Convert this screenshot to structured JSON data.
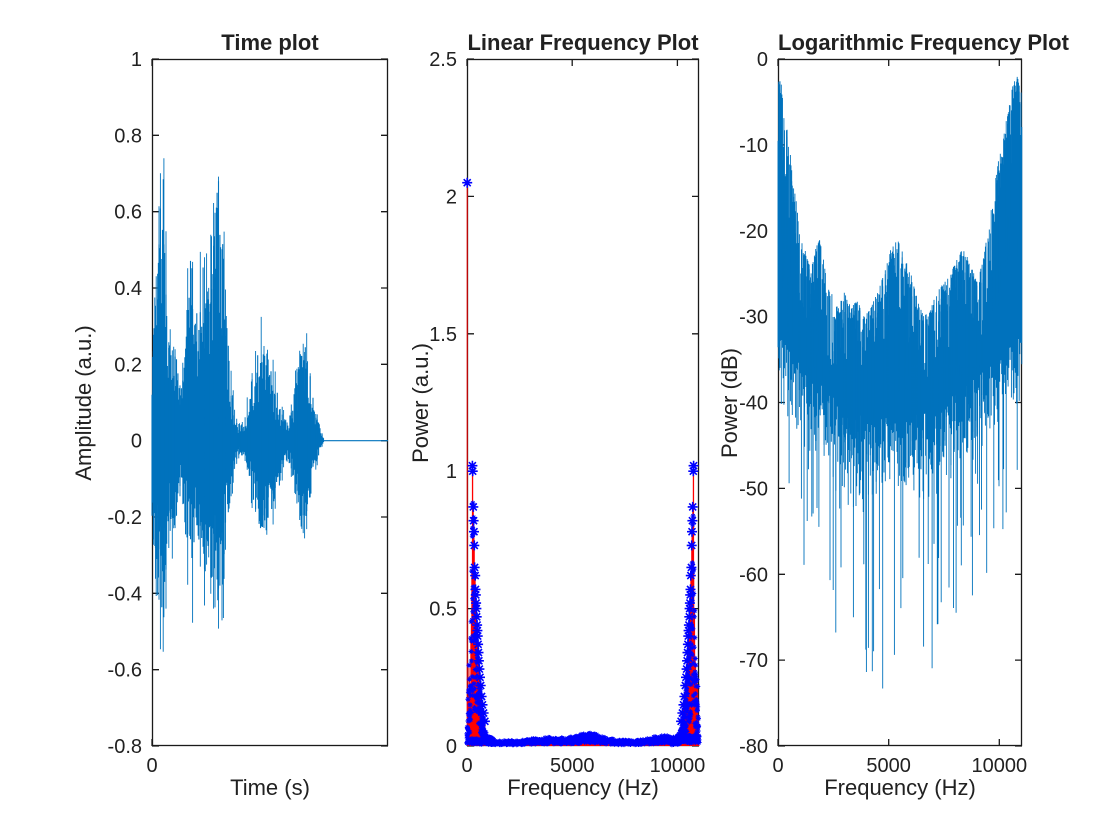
{
  "figure": {
    "background": "#ffffff",
    "waveform_blue": "#0072BD",
    "stem_red": "#ff0000",
    "marker_blue": "#0000ff",
    "axis_color": "#1a1a1a",
    "text_color": "#212121"
  },
  "chart_data": [
    {
      "id": "time-plot",
      "type": "line",
      "title": "Time plot",
      "xlabel": "Time (s)",
      "ylabel": "Amplitude (a.u.)",
      "ylim": [
        -0.8,
        1
      ],
      "yticks": [
        1,
        0.8,
        0.6,
        0.4,
        0.2,
        0,
        -0.2,
        -0.4,
        -0.6,
        -0.8
      ],
      "ytick_labels": [
        "1",
        "0.8",
        "0.6",
        "0.4",
        "0.2",
        "0",
        "-0.2",
        "-0.4",
        "-0.6",
        "-0.8"
      ],
      "xlim": [
        0,
        1
      ],
      "xticks": [
        0
      ],
      "xtick_labels": [
        "0"
      ],
      "grid": false,
      "series_color": "#0072BD",
      "description": "speech waveform with five bursts then silence; x positions given as fraction of visible span (only tick 0 labeled)",
      "envelope_frac_max_min": [
        [
          0.0,
          0.3,
          -0.28
        ],
        [
          0.012,
          0.45,
          -0.38
        ],
        [
          0.028,
          0.62,
          -0.5
        ],
        [
          0.042,
          0.93,
          -0.6
        ],
        [
          0.05,
          0.8,
          -0.62
        ],
        [
          0.06,
          0.55,
          -0.45
        ],
        [
          0.072,
          0.32,
          -0.3
        ],
        [
          0.085,
          0.28,
          -0.34
        ],
        [
          0.1,
          0.3,
          -0.28
        ],
        [
          0.115,
          0.18,
          -0.16
        ],
        [
          0.13,
          0.24,
          -0.22
        ],
        [
          0.145,
          0.42,
          -0.34
        ],
        [
          0.16,
          0.63,
          -0.46
        ],
        [
          0.172,
          0.57,
          -0.48
        ],
        [
          0.185,
          0.46,
          -0.4
        ],
        [
          0.2,
          0.4,
          -0.36
        ],
        [
          0.213,
          0.76,
          -0.5
        ],
        [
          0.225,
          0.54,
          -0.44
        ],
        [
          0.24,
          0.46,
          -0.4
        ],
        [
          0.258,
          0.72,
          -0.52
        ],
        [
          0.275,
          0.92,
          -0.65
        ],
        [
          0.29,
          0.78,
          -0.58
        ],
        [
          0.305,
          0.58,
          -0.46
        ],
        [
          0.32,
          0.36,
          -0.3
        ],
        [
          0.335,
          0.2,
          -0.18
        ],
        [
          0.35,
          0.09,
          -0.08
        ],
        [
          0.365,
          0.05,
          -0.05
        ],
        [
          0.385,
          0.05,
          -0.04
        ],
        [
          0.405,
          0.12,
          -0.1
        ],
        [
          0.425,
          0.22,
          -0.2
        ],
        [
          0.445,
          0.3,
          -0.26
        ],
        [
          0.462,
          0.35,
          -0.3
        ],
        [
          0.48,
          0.28,
          -0.27
        ],
        [
          0.5,
          0.24,
          -0.24
        ],
        [
          0.52,
          0.2,
          -0.22
        ],
        [
          0.54,
          0.13,
          -0.15
        ],
        [
          0.558,
          0.08,
          -0.09
        ],
        [
          0.575,
          0.06,
          -0.06
        ],
        [
          0.592,
          0.12,
          -0.1
        ],
        [
          0.612,
          0.2,
          -0.17
        ],
        [
          0.632,
          0.27,
          -0.23
        ],
        [
          0.648,
          0.32,
          -0.28
        ],
        [
          0.662,
          0.26,
          -0.24
        ],
        [
          0.678,
          0.17,
          -0.15
        ],
        [
          0.695,
          0.09,
          -0.08
        ],
        [
          0.715,
          0.04,
          -0.03
        ],
        [
          0.73,
          0.0,
          0.0
        ],
        [
          1.0,
          0.0,
          0.0
        ]
      ],
      "flat_after_frac": 0.73
    },
    {
      "id": "linear-frequency-plot",
      "type": "stem",
      "title": "Linear Frequency Plot",
      "xlabel": "Frequency (Hz)",
      "ylabel": "Power (a.u.)",
      "xlim": [
        0,
        11025
      ],
      "ylim": [
        0,
        2.5
      ],
      "yticks": [
        0,
        0.5,
        1,
        1.5,
        2,
        2.5
      ],
      "ytick_labels": [
        "0",
        "0.5",
        "1",
        "1.5",
        "2",
        "2.5"
      ],
      "xticks": [
        0,
        5000,
        10000
      ],
      "xtick_labels": [
        "0",
        "5000",
        "10000"
      ],
      "stem_color": "#ff0000",
      "marker": "*",
      "marker_color": "#0000ff",
      "dc_peak_hz_power": [
        10,
        2.05
      ],
      "mirror_nyquist_hz": 11025,
      "harmonic_markers_hz_power": [
        [
          258,
          1.02
        ],
        [
          272,
          1.0
        ],
        [
          301,
          0.87
        ],
        [
          316,
          0.82
        ],
        [
          331,
          0.78
        ],
        [
          346,
          0.73
        ],
        [
          362,
          0.65
        ],
        [
          388,
          0.62
        ],
        [
          403,
          0.57
        ],
        [
          418,
          0.55
        ],
        [
          432,
          0.52
        ],
        [
          447,
          0.5
        ],
        [
          462,
          0.47
        ],
        [
          478,
          0.44
        ],
        [
          494,
          0.42
        ],
        [
          510,
          0.4
        ],
        [
          527,
          0.37
        ],
        [
          546,
          0.34
        ],
        [
          566,
          0.31
        ],
        [
          590,
          0.28
        ],
        [
          618,
          0.25
        ],
        [
          652,
          0.22
        ],
        [
          692,
          0.18
        ],
        [
          738,
          0.15
        ],
        [
          790,
          0.12
        ],
        [
          850,
          0.09
        ]
      ],
      "cluster_envelope_hz_power": [
        [
          0,
          0.05
        ],
        [
          40,
          0.14
        ],
        [
          86,
          0.32
        ],
        [
          125,
          0.22
        ],
        [
          165,
          0.34
        ],
        [
          205,
          0.5
        ],
        [
          235,
          0.72
        ],
        [
          258,
          1.02
        ],
        [
          278,
          0.94
        ],
        [
          300,
          0.87
        ],
        [
          330,
          0.78
        ],
        [
          360,
          0.66
        ],
        [
          395,
          0.6
        ],
        [
          425,
          0.53
        ],
        [
          455,
          0.48
        ],
        [
          490,
          0.43
        ],
        [
          525,
          0.37
        ],
        [
          565,
          0.3
        ],
        [
          620,
          0.23
        ],
        [
          690,
          0.15
        ],
        [
          780,
          0.09
        ],
        [
          900,
          0.05
        ],
        [
          1050,
          0.035
        ],
        [
          1300,
          0.025
        ]
      ],
      "noise_floor_hz_power": [
        [
          0,
          0.03
        ],
        [
          1200,
          0.02
        ],
        [
          2400,
          0.018
        ],
        [
          3300,
          0.028
        ],
        [
          4000,
          0.032
        ],
        [
          4700,
          0.028
        ],
        [
          5300,
          0.04
        ],
        [
          5900,
          0.05
        ],
        [
          6400,
          0.035
        ],
        [
          7100,
          0.022
        ],
        [
          7900,
          0.02
        ],
        [
          8700,
          0.03
        ],
        [
          9400,
          0.04
        ],
        [
          9900,
          0.032
        ],
        [
          10200,
          0.04
        ]
      ]
    },
    {
      "id": "logarithmic-frequency-plot",
      "type": "line",
      "title": "Logarithmic Frequency Plot",
      "xlabel": "Frequency (Hz)",
      "ylabel": "Power (dB)",
      "xlim": [
        0,
        11025
      ],
      "ylim": [
        -80,
        0
      ],
      "yticks": [
        0,
        -10,
        -20,
        -30,
        -40,
        -50,
        -60,
        -70,
        -80
      ],
      "ytick_labels": [
        "0",
        "-10",
        "-20",
        "-30",
        "-40",
        "-50",
        "-60",
        "-70",
        "-80"
      ],
      "xticks": [
        0,
        5000,
        10000
      ],
      "xtick_labels": [
        "0",
        "5000",
        "10000"
      ],
      "series_color": "#0072BD",
      "top_envelope_hz_db": [
        [
          0,
          -2
        ],
        [
          150,
          -3
        ],
        [
          300,
          -6
        ],
        [
          500,
          -10
        ],
        [
          700,
          -14
        ],
        [
          900,
          -18
        ],
        [
          1100,
          -21
        ],
        [
          1400,
          -24
        ],
        [
          1700,
          -22
        ],
        [
          1900,
          -21
        ],
        [
          2100,
          -24
        ],
        [
          2400,
          -27
        ],
        [
          2700,
          -29
        ],
        [
          3000,
          -27
        ],
        [
          3300,
          -29
        ],
        [
          3600,
          -28
        ],
        [
          3900,
          -30
        ],
        [
          4200,
          -29
        ],
        [
          4500,
          -27
        ],
        [
          4800,
          -25
        ],
        [
          5100,
          -22
        ],
        [
          5400,
          -21
        ],
        [
          5700,
          -23
        ],
        [
          6000,
          -25
        ],
        [
          6300,
          -28
        ],
        [
          6600,
          -30
        ],
        [
          6900,
          -29
        ],
        [
          7200,
          -27
        ],
        [
          7500,
          -26
        ],
        [
          7800,
          -25
        ],
        [
          8100,
          -23
        ],
        [
          8400,
          -22
        ],
        [
          8700,
          -24
        ],
        [
          9000,
          -26
        ],
        [
          9300,
          -23
        ],
        [
          9600,
          -18
        ],
        [
          9800,
          -14
        ],
        [
          10100,
          -10
        ],
        [
          10400,
          -6
        ],
        [
          10600,
          -3
        ],
        [
          10800,
          -2
        ],
        [
          11025,
          -4
        ]
      ],
      "dense_bottom_hz_db": [
        [
          0,
          -40
        ],
        [
          800,
          -43
        ],
        [
          2000,
          -46
        ],
        [
          3500,
          -49
        ],
        [
          5500,
          -50
        ],
        [
          7500,
          -48
        ],
        [
          9000,
          -45
        ],
        [
          10200,
          -42
        ],
        [
          11025,
          -40
        ]
      ],
      "spike_bottom_hz_db": [
        [
          0,
          -55
        ],
        [
          800,
          -58
        ],
        [
          2000,
          -64
        ],
        [
          3200,
          -70
        ],
        [
          4300,
          -75
        ],
        [
          5200,
          -73
        ],
        [
          6200,
          -75
        ],
        [
          7200,
          -70
        ],
        [
          8200,
          -66
        ],
        [
          9200,
          -62
        ],
        [
          10200,
          -57
        ],
        [
          11025,
          -52
        ]
      ]
    }
  ]
}
